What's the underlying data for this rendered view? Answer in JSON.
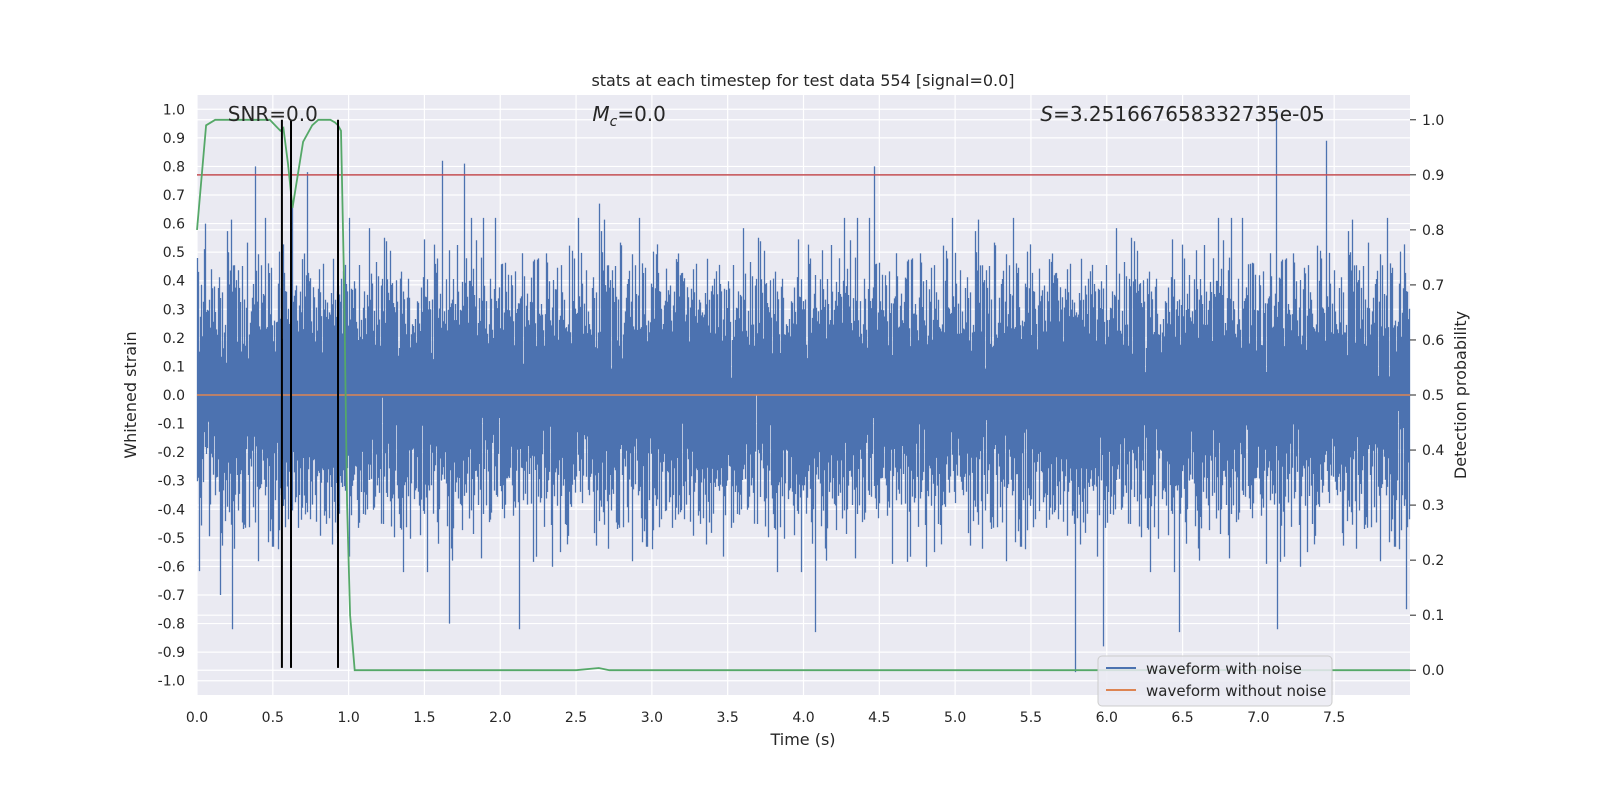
{
  "chart_data": {
    "type": "line",
    "title": "stats at each timestep for test data 554 [signal=0.0]",
    "xlabel": "Time (s)",
    "ylabel": "Whitened strain",
    "y2label": "Detection probability",
    "xlim": [
      0.0,
      8.0
    ],
    "ylim": [
      -1.05,
      1.05
    ],
    "y2lim": [
      -0.045,
      1.045
    ],
    "xticks": [
      "0.0",
      "0.5",
      "1.0",
      "1.5",
      "2.0",
      "2.5",
      "3.0",
      "3.5",
      "4.0",
      "4.5",
      "5.0",
      "5.5",
      "6.0",
      "6.5",
      "7.0",
      "7.5"
    ],
    "yticks": [
      "1.0",
      "0.9",
      "0.8",
      "0.7",
      "0.6",
      "0.5",
      "0.4",
      "0.3",
      "0.2",
      "0.1",
      "0.0",
      "-0.1",
      "-0.2",
      "-0.3",
      "-0.4",
      "-0.5",
      "-0.6",
      "-0.7",
      "-0.8",
      "-0.9",
      "-1.0"
    ],
    "y2ticks": [
      "1.0",
      "0.9",
      "0.8",
      "0.7",
      "0.6",
      "0.5",
      "0.4",
      "0.3",
      "0.2",
      "0.1",
      "0.0"
    ],
    "grid": true,
    "legend_position": "lower-right",
    "annotations": [
      {
        "text": "SNR=0.0",
        "x": 0.5,
        "y": 1.03
      },
      {
        "text": "=0.0",
        "prefix": "M",
        "sub": "c",
        "x": 2.85,
        "y": 1.03
      },
      {
        "text": "=3.251667658332735e-05",
        "prefix": "S",
        "x": 6.5,
        "y": 1.03
      }
    ],
    "series": [
      {
        "name": "waveform with noise",
        "color": "#4c72b0",
        "kind": "noise",
        "sample_rate_hz": 2048,
        "duration_s": 8.0,
        "core_amplitude": 0.35,
        "peaks": [
          {
            "x": 0.06,
            "y": 0.6
          },
          {
            "x": 0.16,
            "y": -0.7
          },
          {
            "x": 0.24,
            "y": -0.82
          },
          {
            "x": 0.39,
            "y": 0.8
          },
          {
            "x": 0.63,
            "y": 0.66
          },
          {
            "x": 0.73,
            "y": 0.78
          },
          {
            "x": 1.01,
            "y": 0.62
          },
          {
            "x": 1.62,
            "y": 0.82
          },
          {
            "x": 1.67,
            "y": -0.8
          },
          {
            "x": 1.77,
            "y": 0.81
          },
          {
            "x": 2.13,
            "y": -0.82
          },
          {
            "x": 2.66,
            "y": 0.67
          },
          {
            "x": 4.08,
            "y": -0.83
          },
          {
            "x": 4.47,
            "y": 0.8
          },
          {
            "x": 5.8,
            "y": -0.97
          },
          {
            "x": 5.98,
            "y": -0.88
          },
          {
            "x": 6.48,
            "y": -0.83
          },
          {
            "x": 7.12,
            "y": 1.0
          },
          {
            "x": 7.13,
            "y": -0.82
          },
          {
            "x": 7.45,
            "y": 0.89
          },
          {
            "x": 7.98,
            "y": -0.75
          }
        ]
      },
      {
        "name": "waveform without noise",
        "color": "#dd8452",
        "kind": "flat",
        "value": 0.0
      },
      {
        "name": "",
        "color": "#55a868",
        "kind": "probability",
        "axis": "right",
        "x": [
          0.0,
          0.06,
          0.12,
          0.2,
          0.3,
          0.4,
          0.48,
          0.55,
          0.57,
          0.6,
          0.63,
          0.7,
          0.76,
          0.8,
          0.88,
          0.91,
          0.93,
          0.95,
          0.97,
          0.99,
          1.01,
          1.04,
          1.2,
          2.0,
          2.5,
          2.65,
          2.72,
          3.0,
          5.0,
          7.0,
          8.0
        ],
        "y": [
          0.8,
          0.99,
          1.0,
          1.0,
          1.0,
          1.0,
          1.0,
          0.98,
          0.985,
          0.92,
          0.84,
          0.96,
          0.99,
          1.0,
          1.0,
          0.995,
          0.99,
          0.98,
          0.7,
          0.3,
          0.1,
          0.0,
          0.0,
          0.0,
          0.0,
          0.004,
          0.0,
          0.0,
          0.0,
          0.0,
          0.0
        ]
      }
    ],
    "hlines": [
      {
        "axis": "right",
        "value": 0.9,
        "color": "#c44e52"
      }
    ],
    "vlines": [
      {
        "x": 0.56,
        "color": "#000000",
        "from": -0.955,
        "to": 1.0
      },
      {
        "x": 0.62,
        "color": "#000000",
        "from": -0.955,
        "to": 1.0
      },
      {
        "x": 0.93,
        "color": "#000000",
        "from": -0.955,
        "to": 1.0
      }
    ],
    "legend": [
      "waveform with noise",
      "waveform without noise"
    ]
  }
}
